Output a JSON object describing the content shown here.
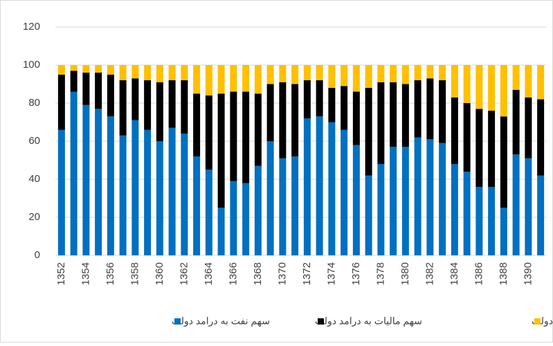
{
  "chart_data": {
    "type": "stacked_bar",
    "categories": [
      "1352",
      null,
      "1354",
      null,
      "1356",
      null,
      "1358",
      null,
      "1360",
      null,
      "1362",
      null,
      "1364",
      null,
      "1366",
      null,
      "1368",
      null,
      "1370",
      null,
      "1372",
      null,
      "1374",
      null,
      "1376",
      null,
      "1378",
      null,
      "1380",
      null,
      "1382",
      null,
      "1384",
      null,
      "1386",
      null,
      "1388",
      null,
      "1390",
      null
    ],
    "series": [
      {
        "name": "سهم نفت به درامد دولت",
        "color": "#0070c0",
        "values": [
          66,
          86,
          79,
          77,
          73,
          63,
          71,
          66,
          60,
          67,
          64,
          52,
          45,
          25,
          39,
          38,
          47,
          60,
          51,
          52,
          72,
          73,
          70,
          66,
          58,
          42,
          48,
          57,
          57,
          62,
          61,
          59,
          48,
          44,
          36,
          36,
          25,
          53,
          51,
          42
        ]
      },
      {
        "name": "سهم مالیات به درامد دولت",
        "color": "#000000",
        "values": [
          29,
          11,
          17,
          19,
          22,
          29,
          22,
          26,
          31,
          25,
          28,
          33,
          39,
          60,
          47,
          48,
          38,
          30,
          40,
          38,
          20,
          19,
          18,
          23,
          28,
          46,
          43,
          34,
          33,
          30,
          32,
          33,
          35,
          36,
          41,
          40,
          48,
          34,
          32,
          40
        ]
      },
      {
        "name": "سهم سایر درامدها در درامد دولت",
        "color": "#ffc000",
        "values": [
          5,
          3,
          4,
          4,
          5,
          8,
          7,
          8,
          9,
          8,
          8,
          15,
          16,
          15,
          14,
          14,
          15,
          10,
          9,
          10,
          8,
          8,
          12,
          11,
          14,
          12,
          9,
          9,
          10,
          8,
          7,
          8,
          17,
          20,
          23,
          24,
          27,
          13,
          17,
          18
        ]
      }
    ],
    "ylim": [
      0,
      120
    ],
    "yticks": [
      0,
      20,
      40,
      60,
      80,
      100,
      120
    ],
    "grid": true,
    "legend": "bottom"
  }
}
